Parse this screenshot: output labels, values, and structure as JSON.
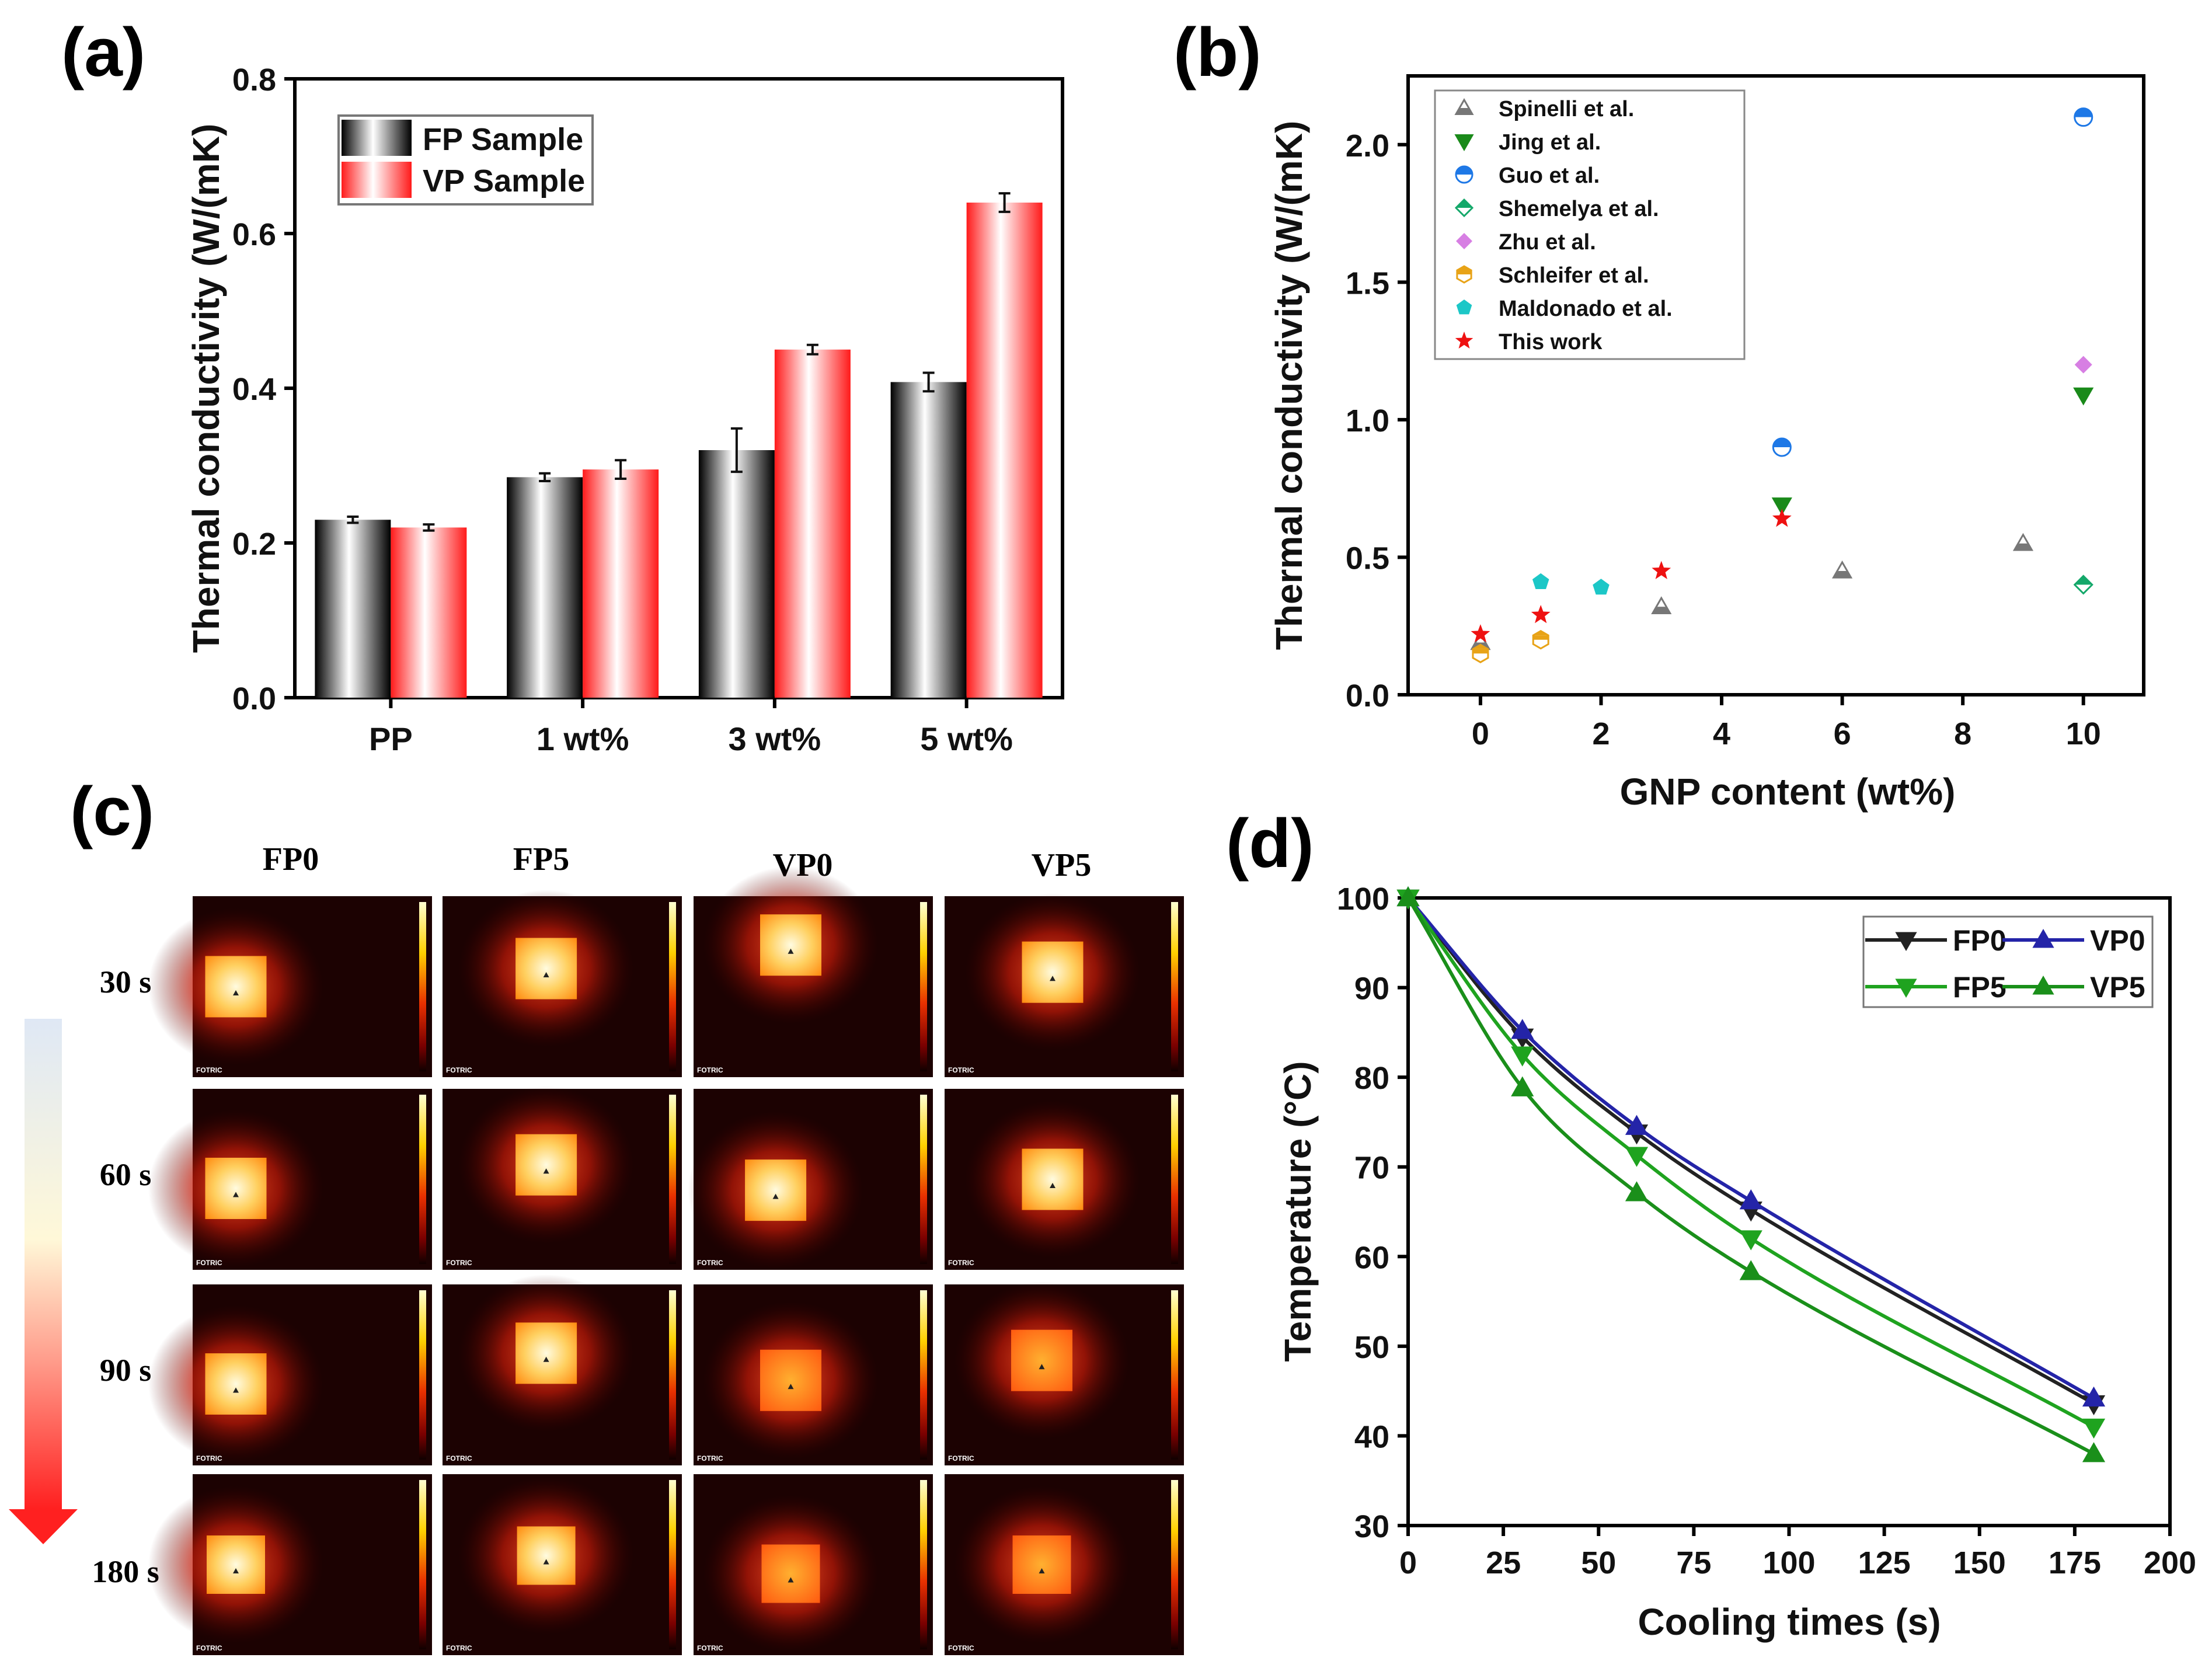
{
  "panels": {
    "a_label": "(a)",
    "b_label": "(b)",
    "c_label": "(c)",
    "d_label": "(d)"
  },
  "chart_data": [
    {
      "id": "a",
      "type": "bar",
      "title": "",
      "xlabel": "",
      "ylabel": "Thermal conductivity (W/(mK)",
      "ylim": [
        0,
        0.8
      ],
      "yticks": [
        0.0,
        0.2,
        0.4,
        0.6,
        0.8
      ],
      "categories": [
        "PP",
        "1 wt%",
        "3 wt%",
        "5 wt%"
      ],
      "series": [
        {
          "name": "FP Sample",
          "color": "#000000",
          "values": [
            0.23,
            0.285,
            0.32,
            0.408
          ],
          "errors": [
            0.004,
            0.005,
            0.028,
            0.012
          ]
        },
        {
          "name": "VP Sample",
          "color": "#ff2a2a",
          "values": [
            0.22,
            0.295,
            0.45,
            0.64
          ],
          "errors": [
            0.004,
            0.012,
            0.006,
            0.012
          ]
        }
      ],
      "legend": "top-left"
    },
    {
      "id": "b",
      "type": "scatter",
      "xlabel": "GNP content (wt%)",
      "ylabel": "Thermal conductivity (W/(mK)",
      "xlim": [
        -1.2,
        11
      ],
      "ylim": [
        0,
        2.25
      ],
      "xticks": [
        0,
        2,
        4,
        6,
        8,
        10
      ],
      "yticks": [
        0.0,
        0.5,
        1.0,
        1.5,
        2.0
      ],
      "series": [
        {
          "name": "Spinelli et al.",
          "marker": "triangle-half",
          "color": "#777777",
          "points": [
            [
              0,
              0.19
            ],
            [
              3,
              0.32
            ],
            [
              6,
              0.45
            ],
            [
              9,
              0.55
            ]
          ]
        },
        {
          "name": "Jing et al.",
          "marker": "triangle-down",
          "color": "#1a8a1a",
          "points": [
            [
              5,
              0.69
            ],
            [
              10,
              1.09
            ]
          ]
        },
        {
          "name": "Guo et al.",
          "marker": "circle-half",
          "color": "#1e78e6",
          "points": [
            [
              5,
              0.9
            ],
            [
              10,
              2.1
            ]
          ]
        },
        {
          "name": "Shemelya et al.",
          "marker": "diamond-half",
          "color": "#14a86a",
          "points": [
            [
              10,
              0.4
            ]
          ]
        },
        {
          "name": "Zhu et al.",
          "marker": "diamond",
          "color": "#d77fe3",
          "points": [
            [
              10,
              1.2
            ]
          ]
        },
        {
          "name": "Schleifer et al.",
          "marker": "hexagon-half",
          "color": "#e8a317",
          "points": [
            [
              0,
              0.15
            ],
            [
              1,
              0.2
            ]
          ]
        },
        {
          "name": "Maldonado et al.",
          "marker": "pentagon",
          "color": "#1cc7c7",
          "points": [
            [
              1,
              0.41
            ],
            [
              2,
              0.39
            ]
          ]
        },
        {
          "name": "This work",
          "marker": "star",
          "color": "#ee1111",
          "points": [
            [
              0,
              0.22
            ],
            [
              1,
              0.29
            ],
            [
              3,
              0.45
            ],
            [
              5,
              0.64
            ]
          ]
        }
      ],
      "legend": "top-left"
    },
    {
      "id": "d",
      "type": "line",
      "xlabel": "Cooling times (s)",
      "ylabel": "Temperature (°C)",
      "xlim": [
        0,
        200
      ],
      "ylim": [
        30,
        100
      ],
      "xticks": [
        0,
        25,
        50,
        75,
        100,
        125,
        150,
        175,
        200
      ],
      "yticks": [
        30,
        40,
        50,
        60,
        70,
        80,
        90,
        100
      ],
      "x": [
        0,
        30,
        60,
        90,
        180
      ],
      "series": [
        {
          "name": "FP0",
          "color": "#222222",
          "marker": "triangle-down",
          "values": [
            100,
            84.5,
            73.8,
            65.2,
            43.6
          ]
        },
        {
          "name": "VP0",
          "color": "#2424a8",
          "marker": "triangle-up",
          "values": [
            100,
            85.2,
            74.5,
            66.2,
            44.2
          ]
        },
        {
          "name": "FP5",
          "color": "#1fa31f",
          "marker": "triangle-down",
          "values": [
            100,
            82.5,
            71.3,
            62,
            41
          ]
        },
        {
          "name": "VP5",
          "color": "#1a8f1a",
          "marker": "triangle-up",
          "values": [
            100,
            78.8,
            67.1,
            58.3,
            38
          ]
        }
      ],
      "legend": "top-right"
    }
  ],
  "thermal": {
    "columns": [
      "FP0",
      "FP5",
      "VP0",
      "VP5"
    ],
    "rows": [
      "30 s",
      "60 s",
      "90 s",
      "180 s"
    ],
    "brand": "FOTRIC"
  }
}
